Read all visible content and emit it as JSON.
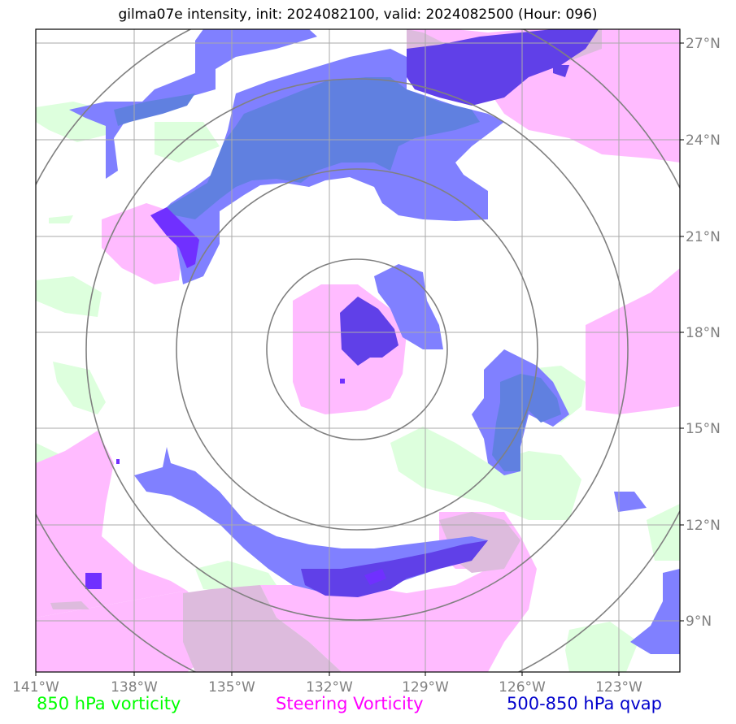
{
  "title": "gilma07e intensity, init: 2024082100, valid: 2024082500 (Hour: 096)",
  "map": {
    "lon_labels": [
      "141°W",
      "138°W",
      "135°W",
      "132°W",
      "129°W",
      "126°W",
      "123°W"
    ],
    "lat_labels": [
      "27°N",
      "24°N",
      "21°N",
      "18°N",
      "15°N",
      "12°N",
      "9°N"
    ],
    "colors": {
      "vort850": "#ddffdd",
      "steering": "#ffbbff",
      "overlap": "#ddbbdd",
      "qvap_light": "#8080ff",
      "qvap_mid": "#6080e0",
      "qvap_dark": "#6040e8",
      "qvap_darkest": "#7030ff",
      "grid": "#aaaaaa",
      "range_rings": "#808080"
    }
  },
  "legend": {
    "vort850": "850 hPa vorticity",
    "steering": "Steering Vorticity",
    "qvap": "500-850 hPa qvap"
  }
}
